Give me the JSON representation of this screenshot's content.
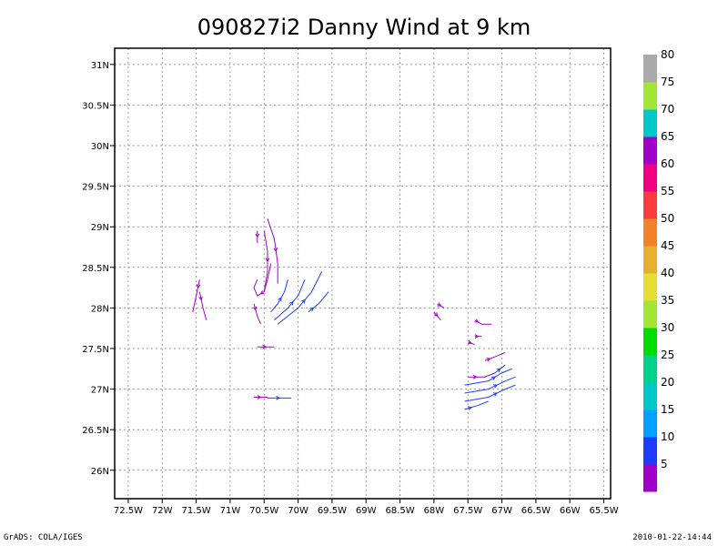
{
  "footer": {
    "left": "GrADS: COLA/IGES",
    "right": "2010-01-22-14:44"
  },
  "chart_data": {
    "type": "streamline",
    "title": "090827i2 Danny Wind at 9 km",
    "xlim": [
      -72.7,
      -65.4
    ],
    "ylim": [
      25.65,
      31.2
    ],
    "xticks": [
      {
        "value": -72.5,
        "label": "72.5W"
      },
      {
        "value": -72,
        "label": "72W"
      },
      {
        "value": -71.5,
        "label": "71.5W"
      },
      {
        "value": -71,
        "label": "71W"
      },
      {
        "value": -70.5,
        "label": "70.5W"
      },
      {
        "value": -70,
        "label": "70W"
      },
      {
        "value": -69.5,
        "label": "69.5W"
      },
      {
        "value": -69,
        "label": "69W"
      },
      {
        "value": -68.5,
        "label": "68.5W"
      },
      {
        "value": -68,
        "label": "68W"
      },
      {
        "value": -67.5,
        "label": "67.5W"
      },
      {
        "value": -67,
        "label": "67W"
      },
      {
        "value": -66.5,
        "label": "66.5W"
      },
      {
        "value": -66,
        "label": "66W"
      },
      {
        "value": -65.5,
        "label": "65.5W"
      }
    ],
    "yticks": [
      {
        "value": 26,
        "label": "26N"
      },
      {
        "value": 26.5,
        "label": "26.5N"
      },
      {
        "value": 27,
        "label": "27N"
      },
      {
        "value": 27.5,
        "label": "27.5N"
      },
      {
        "value": 28,
        "label": "28N"
      },
      {
        "value": 28.5,
        "label": "28.5N"
      },
      {
        "value": 29,
        "label": "29N"
      },
      {
        "value": 29.5,
        "label": "29.5N"
      },
      {
        "value": 30,
        "label": "30N"
      },
      {
        "value": 30.5,
        "label": "30.5N"
      },
      {
        "value": 31,
        "label": "31N"
      }
    ],
    "grid": true,
    "colorbar": {
      "labels": [
        "5",
        "10",
        "15",
        "20",
        "25",
        "30",
        "35",
        "40",
        "45",
        "50",
        "55",
        "60",
        "65",
        "70",
        "75",
        "80"
      ],
      "colors": [
        "#a000c8",
        "#1e3cff",
        "#00a0ff",
        "#00c8c8",
        "#00d28c",
        "#00dc00",
        "#a0e632",
        "#e6dc32",
        "#e6af2d",
        "#f08228",
        "#fa3c3c",
        "#f00082",
        "#a000c8",
        "#00c8c8",
        "#a0e632",
        "#aaaaaa"
      ]
    },
    "streamlines": [
      {
        "color": "#a000c8",
        "points": [
          [
            -71.45,
            28.35
          ],
          [
            -71.5,
            28.15
          ],
          [
            -71.55,
            27.95
          ]
        ]
      },
      {
        "color": "#a000c8",
        "points": [
          [
            -71.45,
            28.2
          ],
          [
            -71.4,
            28.0
          ],
          [
            -71.35,
            27.85
          ]
        ]
      },
      {
        "color": "#a000c8",
        "points": [
          [
            -70.45,
            29.1
          ],
          [
            -70.35,
            28.85
          ],
          [
            -70.3,
            28.55
          ],
          [
            -70.3,
            28.3
          ]
        ]
      },
      {
        "color": "#a000c8",
        "points": [
          [
            -70.5,
            28.95
          ],
          [
            -70.45,
            28.7
          ],
          [
            -70.45,
            28.45
          ],
          [
            -70.5,
            28.2
          ]
        ]
      },
      {
        "color": "#a000c8",
        "points": [
          [
            -70.6,
            28.95
          ],
          [
            -70.6,
            28.8
          ]
        ]
      },
      {
        "color": "#a000c8",
        "points": [
          [
            -70.4,
            28.55
          ],
          [
            -70.45,
            28.35
          ],
          [
            -70.5,
            28.2
          ],
          [
            -70.6,
            28.15
          ],
          [
            -70.65,
            28.25
          ],
          [
            -70.6,
            28.35
          ]
        ]
      },
      {
        "color": "#a000c8",
        "points": [
          [
            -70.65,
            28.05
          ],
          [
            -70.6,
            27.9
          ],
          [
            -70.55,
            27.8
          ]
        ]
      },
      {
        "color": "#a000c8",
        "points": [
          [
            -70.6,
            27.52
          ],
          [
            -70.35,
            27.52
          ]
        ]
      },
      {
        "color": "#a000c8",
        "points": [
          [
            -70.65,
            26.9
          ],
          [
            -70.45,
            26.9
          ]
        ]
      },
      {
        "color": "#1e3cff",
        "points": [
          [
            -70.45,
            26.89
          ],
          [
            -70.1,
            26.89
          ]
        ]
      },
      {
        "color": "#1e3cff",
        "points": [
          [
            -70.4,
            27.95
          ],
          [
            -70.3,
            28.05
          ],
          [
            -70.2,
            28.2
          ],
          [
            -70.15,
            28.35
          ]
        ]
      },
      {
        "color": "#1e3cff",
        "points": [
          [
            -70.35,
            27.85
          ],
          [
            -70.15,
            28.0
          ],
          [
            -70.0,
            28.15
          ],
          [
            -69.9,
            28.35
          ]
        ]
      },
      {
        "color": "#1e3cff",
        "points": [
          [
            -70.3,
            27.8
          ],
          [
            -70.0,
            28.0
          ],
          [
            -69.8,
            28.2
          ],
          [
            -69.65,
            28.45
          ]
        ]
      },
      {
        "color": "#1e3cff",
        "points": [
          [
            -69.85,
            27.95
          ],
          [
            -69.7,
            28.05
          ],
          [
            -69.55,
            28.2
          ]
        ]
      },
      {
        "color": "#a000c8",
        "points": [
          [
            -68.0,
            27.95
          ],
          [
            -67.9,
            27.85
          ]
        ]
      },
      {
        "color": "#a000c8",
        "points": [
          [
            -67.95,
            28.05
          ],
          [
            -67.85,
            28.0
          ]
        ]
      },
      {
        "color": "#a000c8",
        "points": [
          [
            -67.4,
            27.85
          ],
          [
            -67.3,
            27.8
          ],
          [
            -67.15,
            27.8
          ]
        ]
      },
      {
        "color": "#a000c8",
        "points": [
          [
            -67.4,
            27.65
          ],
          [
            -67.3,
            27.65
          ]
        ]
      },
      {
        "color": "#a000c8",
        "points": [
          [
            -67.5,
            27.58
          ],
          [
            -67.4,
            27.55
          ]
        ]
      },
      {
        "color": "#a000c8",
        "points": [
          [
            -67.25,
            27.35
          ],
          [
            -67.1,
            27.4
          ],
          [
            -66.95,
            27.45
          ]
        ]
      },
      {
        "color": "#a000c8",
        "points": [
          [
            -67.5,
            27.15
          ],
          [
            -67.25,
            27.15
          ],
          [
            -67.1,
            27.2
          ]
        ]
      },
      {
        "color": "#1e3cff",
        "points": [
          [
            -67.1,
            27.2
          ],
          [
            -66.95,
            27.3
          ]
        ]
      },
      {
        "color": "#1e3cff",
        "points": [
          [
            -67.55,
            27.05
          ],
          [
            -67.2,
            27.1
          ],
          [
            -67.0,
            27.2
          ],
          [
            -66.85,
            27.25
          ]
        ]
      },
      {
        "color": "#1e3cff",
        "points": [
          [
            -67.55,
            26.95
          ],
          [
            -67.2,
            27.0
          ],
          [
            -66.95,
            27.1
          ],
          [
            -66.8,
            27.15
          ]
        ]
      },
      {
        "color": "#1e3cff",
        "points": [
          [
            -67.55,
            26.85
          ],
          [
            -67.2,
            26.9
          ],
          [
            -66.95,
            27.0
          ],
          [
            -66.8,
            27.05
          ]
        ]
      },
      {
        "color": "#1e3cff",
        "points": [
          [
            -67.55,
            26.75
          ],
          [
            -67.35,
            26.8
          ],
          [
            -67.2,
            26.85
          ]
        ]
      }
    ]
  }
}
